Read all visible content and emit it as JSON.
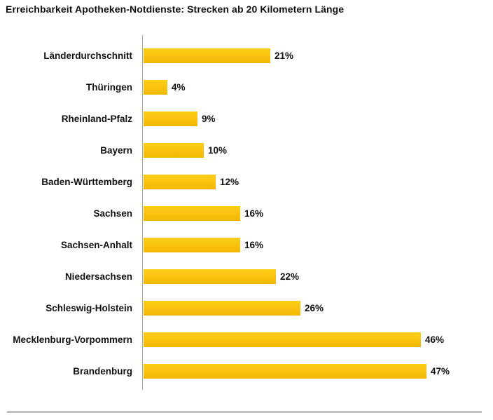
{
  "title": "Erreichbarkeit Apotheken-Notdienste: Strecken ab 20 Kilometern Länge",
  "chart_data": {
    "type": "bar",
    "orientation": "horizontal",
    "title": "Erreichbarkeit Apotheken-Notdienste: Strecken ab 20 Kilometern Länge",
    "categories": [
      "Länderdurchschnitt",
      "Thüringen",
      "Rheinland-Pfalz",
      "Bayern",
      "Baden-Württemberg",
      "Sachsen",
      "Sachsen-Anhalt",
      "Niedersachsen",
      "Schleswig-Holstein",
      "Mecklenburg-Vorpommern",
      "Brandenburg"
    ],
    "values": [
      21,
      4,
      9,
      10,
      12,
      16,
      16,
      22,
      26,
      46,
      47
    ],
    "value_labels": [
      "21%",
      "4%",
      "9%",
      "10%",
      "12%",
      "16%",
      "16%",
      "22%",
      "26%",
      "46%",
      "47%"
    ],
    "unit": "%",
    "xlabel": "",
    "ylabel": "",
    "xlim": [
      0,
      50
    ],
    "grid": false,
    "legend": null,
    "bar_color": "#FAC412",
    "bar_color_top": "#FCCE15",
    "bar_color_bottom": "#F2B702",
    "axis_color": "#A6A6A6",
    "separator_color": "#BFBFBF",
    "text_color": "#111111"
  }
}
